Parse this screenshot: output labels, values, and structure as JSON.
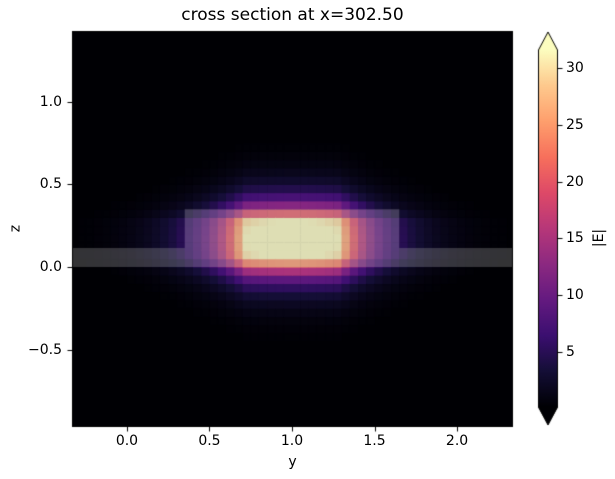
{
  "figure": {
    "background": "#ffffff"
  },
  "chart_data": {
    "type": "heatmap",
    "title": "cross section at x=302.50",
    "xlabel": "y",
    "ylabel": "z",
    "x_range": [
      -0.333,
      2.339
    ],
    "z_range": [
      -0.968,
      1.428
    ],
    "x_ticks": [
      {
        "value": 0.0,
        "label": "0.0"
      },
      {
        "value": 0.5,
        "label": "0.5"
      },
      {
        "value": 1.0,
        "label": "1.0"
      },
      {
        "value": 1.5,
        "label": "1.5"
      },
      {
        "value": 2.0,
        "label": "2.0"
      }
    ],
    "z_ticks": [
      {
        "value": 1.0,
        "label": "1.0"
      },
      {
        "value": 0.5,
        "label": "0.5"
      },
      {
        "value": 0.0,
        "label": "0.0"
      },
      {
        "value": -0.5,
        "label": "−0.5"
      }
    ],
    "colorbar": {
      "label": "|E|",
      "vmin": 0.16,
      "vmax": 31.6,
      "extend": "both",
      "ticks": [
        {
          "value": 5,
          "label": "5"
        },
        {
          "value": 10,
          "label": "10"
        },
        {
          "value": 15,
          "label": "15"
        },
        {
          "value": 20,
          "label": "20"
        },
        {
          "value": 25,
          "label": "25"
        },
        {
          "value": 30,
          "label": "30"
        }
      ]
    },
    "colormap": "magma",
    "colormap_stops": [
      {
        "t": 0.0,
        "color": "#000004"
      },
      {
        "t": 0.1,
        "color": "#140e36"
      },
      {
        "t": 0.2,
        "color": "#3b0f70"
      },
      {
        "t": 0.3,
        "color": "#641a80"
      },
      {
        "t": 0.4,
        "color": "#8c2981"
      },
      {
        "t": 0.5,
        "color": "#b73779"
      },
      {
        "t": 0.6,
        "color": "#de4968"
      },
      {
        "t": 0.7,
        "color": "#f7705c"
      },
      {
        "t": 0.8,
        "color": "#fe9f6d"
      },
      {
        "t": 0.9,
        "color": "#fec98d"
      },
      {
        "t": 1.0,
        "color": "#fcfdbf"
      }
    ],
    "cell_size": 0.05,
    "field": {
      "description": "fundamental guided mode |E| of ridge waveguide",
      "peak": 34,
      "center_y": 1.0,
      "center_z": 0.165,
      "core_half_width_y": 0.28,
      "core_half_height_z": 0.115,
      "decay_length_y": 0.21,
      "decay_length_z": 0.1,
      "core_edge_fraction": 0.93
    },
    "structure_overlay": {
      "color": "#a0a0a0",
      "alpha": 0.32,
      "slab": {
        "y": [
          -0.333,
          2.339
        ],
        "z": [
          0.0,
          0.115
        ]
      },
      "ridge": {
        "y": [
          0.35,
          1.65
        ],
        "z": [
          0.115,
          0.35
        ]
      }
    }
  }
}
